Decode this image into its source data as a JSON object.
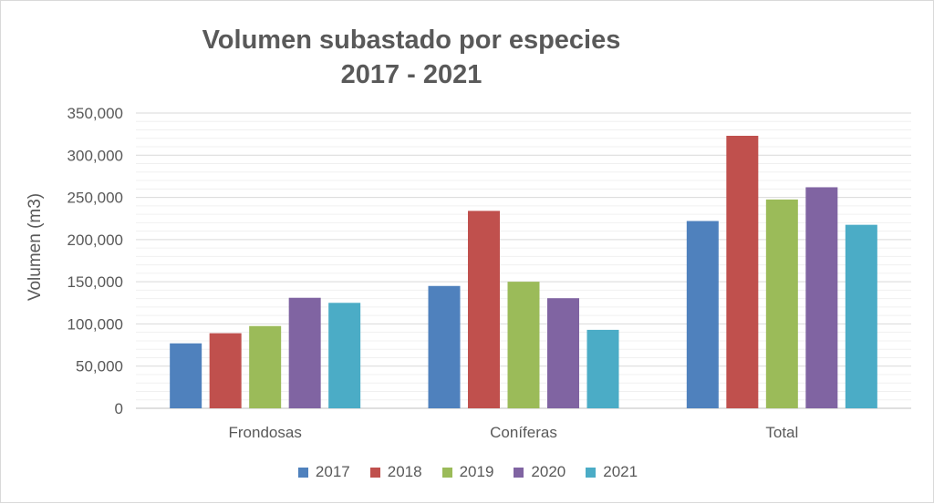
{
  "chart_data": {
    "type": "bar",
    "title_lines": [
      "Volumen subastado por especies",
      "2017 - 2021"
    ],
    "xlabel": "",
    "ylabel": "Volumen (m3)",
    "ylim": [
      0,
      350000
    ],
    "yticks": [
      0,
      50000,
      100000,
      150000,
      200000,
      250000,
      300000,
      350000
    ],
    "ytick_labels": [
      "0",
      "50,000",
      "100,000",
      "150,000",
      "200,000",
      "250,000",
      "300,000",
      "350,000"
    ],
    "categories": [
      "Frondosas",
      "Coníferas",
      "Total"
    ],
    "series": [
      {
        "name": "2017",
        "color": "#4f81bd",
        "values": [
          77000,
          145000,
          222000
        ]
      },
      {
        "name": "2018",
        "color": "#c0504d",
        "values": [
          89000,
          234000,
          323000
        ]
      },
      {
        "name": "2019",
        "color": "#9bbb59",
        "values": [
          97500,
          150000,
          247500
        ]
      },
      {
        "name": "2020",
        "color": "#8064a2",
        "values": [
          131000,
          130500,
          262000
        ]
      },
      {
        "name": "2021",
        "color": "#4bacc6",
        "values": [
          125000,
          93000,
          217500
        ]
      }
    ],
    "grid": true,
    "legend_position": "bottom"
  }
}
